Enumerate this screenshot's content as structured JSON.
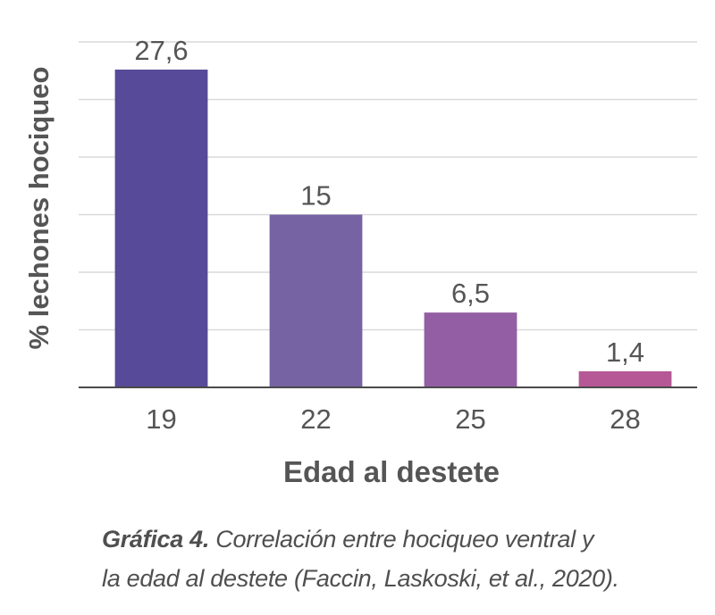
{
  "chart_data": {
    "type": "bar",
    "categories": [
      "19",
      "22",
      "25",
      "28"
    ],
    "values": [
      27.6,
      15,
      6.5,
      1.4
    ],
    "value_labels": [
      "27,6",
      "15",
      "6,5",
      "1,4"
    ],
    "title": "",
    "xlabel": "Edad al destete",
    "ylabel": "% lechones hociqueo",
    "ylim": [
      0,
      30
    ],
    "gridline_step": 5,
    "grid": true,
    "legend": "none",
    "bar_colors": [
      "#574a98",
      "#7563a3",
      "#935ea3",
      "#b65896"
    ]
  },
  "caption": {
    "lead": "Gráfica 4.",
    "line1": " Correlación entre hociqueo ventral y",
    "line2": "la edad al destete (Faccin, Laskoski, et al., 2020)."
  },
  "colors": {
    "gridline": "#d9d9d9",
    "axis": "#4a4a4a",
    "text": "#555555"
  }
}
